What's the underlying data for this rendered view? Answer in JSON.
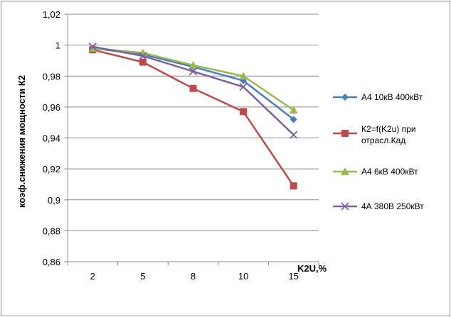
{
  "chart_data": {
    "type": "line",
    "title": "",
    "xlabel": "K2U,%",
    "ylabel": "коэф.снижения мощности К2",
    "categories": [
      "2",
      "5",
      "8",
      "10",
      "15"
    ],
    "ylim": [
      0.86,
      1.02
    ],
    "yticks": [
      "0,86",
      "0,88",
      "0,9",
      "0,92",
      "0,94",
      "0,96",
      "0,98",
      "1",
      "1,02"
    ],
    "grid": true,
    "legend_position": "right",
    "series": [
      {
        "name": "А4 10кВ 400кВт",
        "values": [
          0.998,
          0.994,
          0.986,
          0.977,
          0.952
        ],
        "color": "#4a7ebb",
        "marker": "diamond"
      },
      {
        "name": "К2=f(K2u) при отрасл.Кад",
        "values": [
          0.997,
          0.989,
          0.972,
          0.957,
          0.909
        ],
        "color": "#be4b48",
        "marker": "square"
      },
      {
        "name": "А4 6кВ 400кВт",
        "values": [
          0.998,
          0.995,
          0.987,
          0.98,
          0.958
        ],
        "color": "#98b954",
        "marker": "triangle"
      },
      {
        "name": "4А 380В 250кВт",
        "values": [
          0.999,
          0.993,
          0.983,
          0.973,
          0.942
        ],
        "color": "#7d60a0",
        "marker": "x"
      }
    ]
  }
}
